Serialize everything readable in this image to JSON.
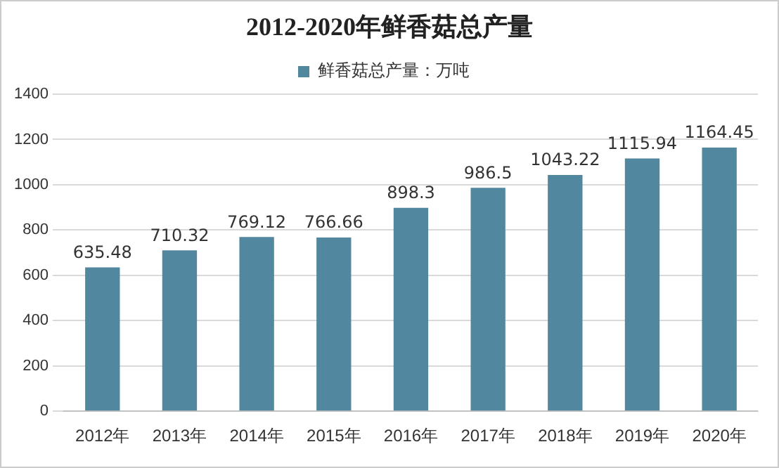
{
  "chart_data": {
    "type": "bar",
    "title": "2012-2020年鲜香菇总产量",
    "categories": [
      "2012年",
      "2013年",
      "2014年",
      "2015年",
      "2016年",
      "2017年",
      "2018年",
      "2019年",
      "2020年"
    ],
    "series": [
      {
        "name": "鲜香菇总产量：万吨",
        "color": "#5287a0",
        "values": [
          635.48,
          710.32,
          769.12,
          766.66,
          898.3,
          986.5,
          1043.22,
          1115.94,
          1164.45
        ]
      }
    ],
    "ylim": [
      0,
      1400
    ],
    "yticks": [
      0,
      200,
      400,
      600,
      800,
      1000,
      1200,
      1400
    ],
    "grid": "y",
    "legend": "top",
    "data_labels": true
  }
}
